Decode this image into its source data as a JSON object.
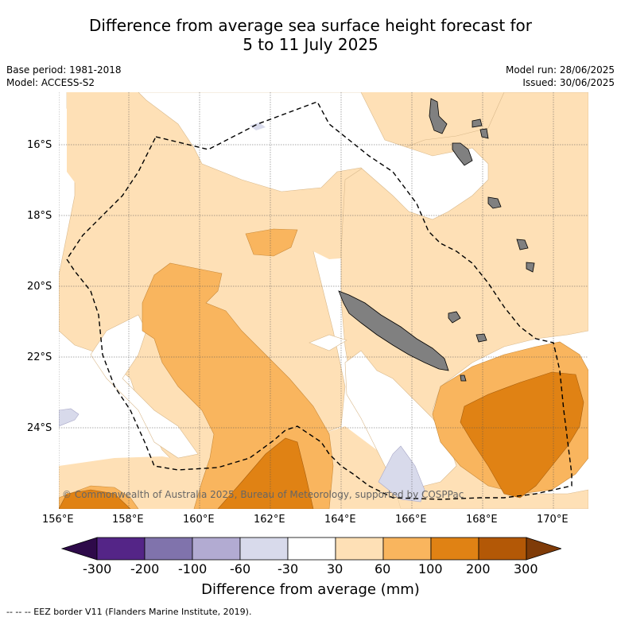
{
  "title_line1": "Difference from average sea surface height forecast for",
  "title_line2": "5 to 11 July 2025",
  "base_period": "Base period: 1981-2018",
  "model": "Model: ACCESS-S2",
  "model_run": "Model run: 28/06/2025",
  "issued": "Issued: 30/06/2025",
  "lat_labels": [
    "16°S",
    "18°S",
    "20°S",
    "22°S",
    "24°S"
  ],
  "lon_labels": [
    "156°E",
    "158°E",
    "160°E",
    "162°E",
    "164°E",
    "166°E",
    "168°E",
    "170°E"
  ],
  "copyright": "© Commonwealth of Australia 2025, Bureau of Meteorology, supported by COSPPac",
  "colorbar": {
    "ticks": [
      "-300",
      "-200",
      "-100",
      "-60",
      "-30",
      "30",
      "60",
      "100",
      "200",
      "300"
    ],
    "colors": [
      "#2e0a4a",
      "#542587",
      "#8073ac",
      "#b2abd2",
      "#d8daeb",
      "#ffffff",
      "#fee0b6",
      "#f9b55e",
      "#e08214",
      "#b35806",
      "#7f3b08"
    ],
    "title": "Difference from average (mm)"
  },
  "footer": "--  --  -- EEZ border V11 (Flanders Marine Institute, 2019)."
}
